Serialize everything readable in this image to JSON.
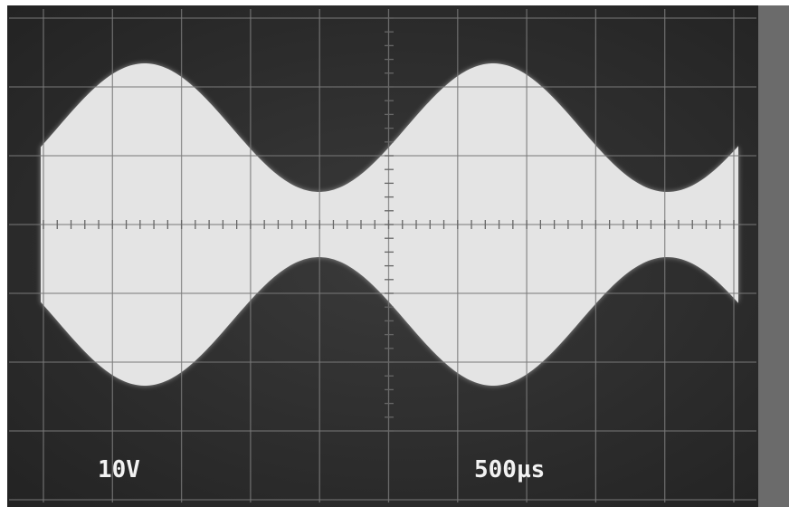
{
  "readouts": {
    "vertical": "10V",
    "horizontal": "500µs"
  }
}
